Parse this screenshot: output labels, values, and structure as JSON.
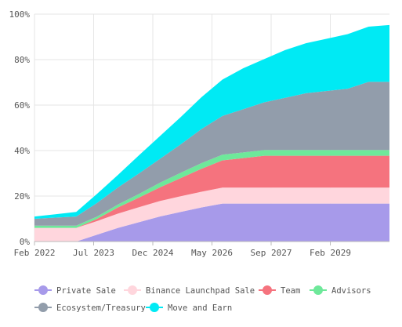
{
  "chart_data": {
    "type": "area",
    "stacked": true,
    "title": "",
    "xlabel": "",
    "ylabel": "",
    "ylim": [
      0,
      100
    ],
    "y_ticks": [
      "0%",
      "20%",
      "40%",
      "60%",
      "80%",
      "100%"
    ],
    "y_tick_values": [
      0,
      20,
      40,
      60,
      80,
      100
    ],
    "x_ticks": [
      "Feb 2022",
      "Jul 2023",
      "Dec 2024",
      "May 2026",
      "Sep 2027",
      "Feb 2029"
    ],
    "x": [
      "Feb 2022",
      "Jun 2022",
      "Jan 2023",
      "Jul 2023",
      "Jan 2024",
      "Jul 2024",
      "Jan 2025",
      "Jul 2025",
      "Jan 2026",
      "Jul 2026",
      "Jan 2027",
      "Jul 2027",
      "Jan 2028",
      "Jul 2028",
      "Jan 2029",
      "Jul 2029",
      "Jan 2030",
      "Jul 2030"
    ],
    "series": [
      {
        "name": "Private Sale",
        "color": "#a79aea",
        "values": [
          0,
          0,
          0,
          3,
          6,
          8.5,
          11,
          13,
          15,
          16.7,
          16.7,
          16.7,
          16.7,
          16.7,
          16.7,
          16.7,
          16.7,
          16.7
        ]
      },
      {
        "name": "Binance Launchpad Sale",
        "color": "#ffd6dd",
        "values": [
          6,
          6,
          6,
          6,
          6.3,
          6.6,
          6.8,
          6.9,
          6.9,
          7,
          7,
          7,
          7,
          7,
          7,
          7,
          7,
          7
        ]
      },
      {
        "name": "Team",
        "color": "#f5737e",
        "values": [
          0,
          0,
          0,
          1,
          2.7,
          4.2,
          6,
          8,
          10.1,
          12,
          13,
          14,
          14,
          14,
          14,
          14,
          14,
          14
        ]
      },
      {
        "name": "Advisors",
        "color": "#6ee89a",
        "values": [
          1,
          1,
          1,
          1,
          1.3,
          1.6,
          2,
          2.3,
          2.5,
          2.5,
          2.5,
          2.5,
          2.5,
          2.5,
          2.5,
          2.5,
          2.5,
          2.5
        ]
      },
      {
        "name": "Ecosystem/Treasury",
        "color": "#929dab",
        "values": [
          3,
          3.5,
          4,
          6,
          7.5,
          9,
          10.5,
          12.5,
          15,
          17,
          19,
          21,
          23,
          25,
          26,
          27,
          30,
          30
        ]
      },
      {
        "name": "Move and Earn",
        "color": "#00eaf4",
        "values": [
          1,
          1.5,
          2,
          4,
          5.5,
          8,
          10,
          12,
          14,
          16,
          18,
          19,
          21,
          22,
          23,
          24,
          24.3,
          25
        ]
      }
    ],
    "grid": true,
    "legend_position": "bottom"
  }
}
